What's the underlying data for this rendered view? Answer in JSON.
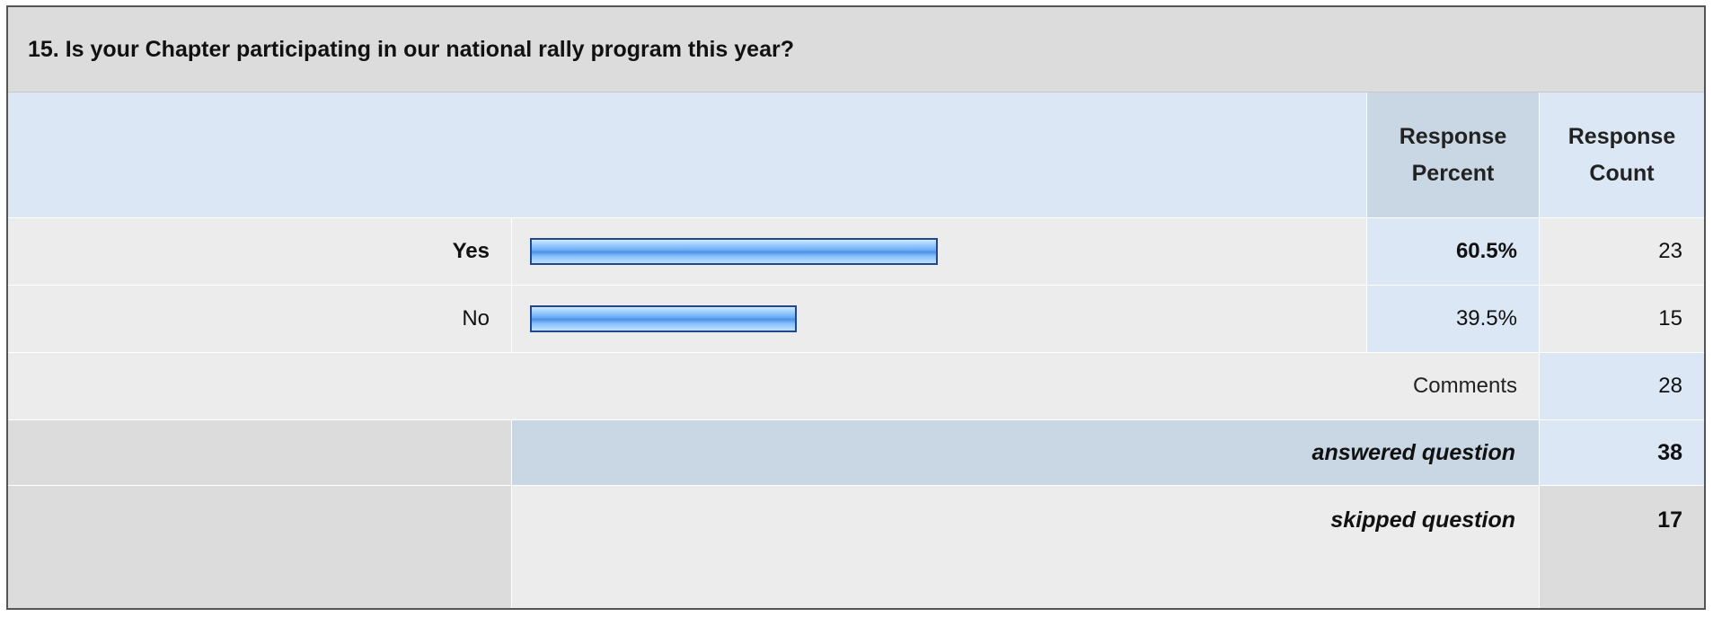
{
  "question": {
    "title": "15. Is your Chapter participating in our national rally program this year?"
  },
  "headers": {
    "response_percent_line1": "Response",
    "response_percent_line2": "Percent",
    "response_count_line1": "Response",
    "response_count_line2": "Count"
  },
  "answers": [
    {
      "label": "Yes",
      "percent": "60.5%",
      "count": "23",
      "bold": true
    },
    {
      "label": "No",
      "percent": "39.5%",
      "count": "15",
      "bold": false
    }
  ],
  "comments": {
    "label": "Comments",
    "count": "28"
  },
  "summary": {
    "answered_label": "answered question",
    "answered_count": "38",
    "skipped_label": "skipped question",
    "skipped_count": "17"
  },
  "chart_data": {
    "type": "bar",
    "categories": [
      "Yes",
      "No"
    ],
    "values": [
      60.5,
      39.5
    ],
    "counts": [
      23,
      15
    ],
    "title": "15. Is your Chapter participating in our national rally program this year?",
    "xlabel": "",
    "ylabel": "Response Percent",
    "unit": "%",
    "orientation": "horizontal",
    "bar_color": "#6aa9f2",
    "bar_border_color": "#23478a"
  }
}
